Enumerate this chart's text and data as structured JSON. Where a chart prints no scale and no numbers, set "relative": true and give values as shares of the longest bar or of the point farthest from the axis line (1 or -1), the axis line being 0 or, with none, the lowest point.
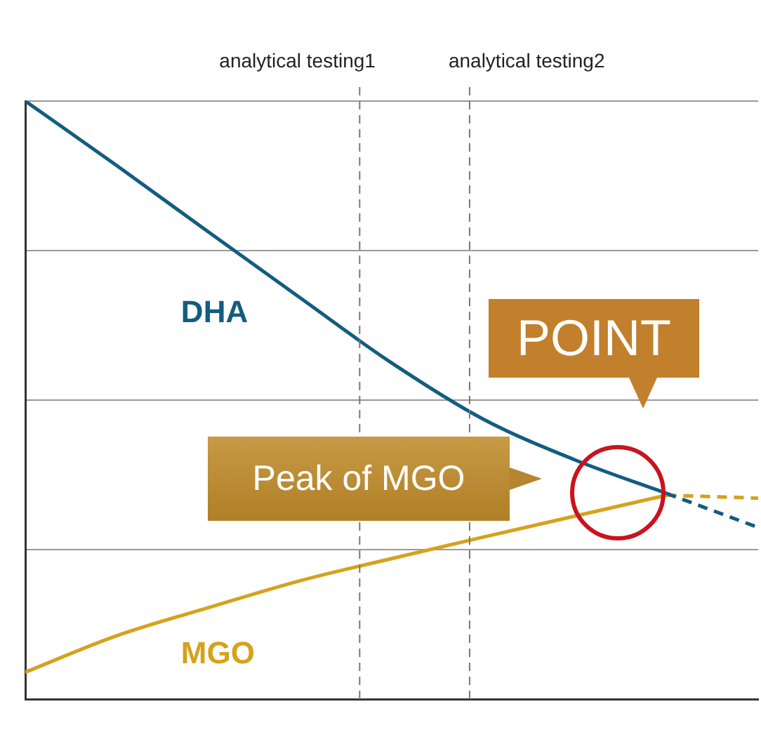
{
  "chart_data": {
    "type": "line",
    "relative": true,
    "grid": "y",
    "categories": [
      null,
      null,
      null,
      null,
      null,
      null,
      null,
      null,
      null
    ],
    "series": [
      {
        "name": "DHA",
        "color": "#135d80",
        "values": [
          1.0,
          0.892,
          0.781,
          0.671,
          0.562,
          0.468,
          0.4,
          0.344,
          null
        ]
      },
      {
        "color": "#135d80",
        "line_style": "dashed",
        "values": [
          null,
          null,
          null,
          null,
          null,
          null,
          null,
          0.344,
          0.287
        ]
      },
      {
        "name": "MGO",
        "color": "#d6a21c",
        "values": [
          0.045,
          0.106,
          0.153,
          0.198,
          0.235,
          0.271,
          0.306,
          0.341,
          null
        ]
      },
      {
        "color": "#d6a21c",
        "line_style": "dashed",
        "values": [
          null,
          null,
          null,
          null,
          null,
          null,
          null,
          0.341,
          0.336
        ]
      }
    ],
    "annotations": [
      "analytical testing1",
      "analytical testing2",
      "POINT",
      "Peak of MGO"
    ]
  }
}
